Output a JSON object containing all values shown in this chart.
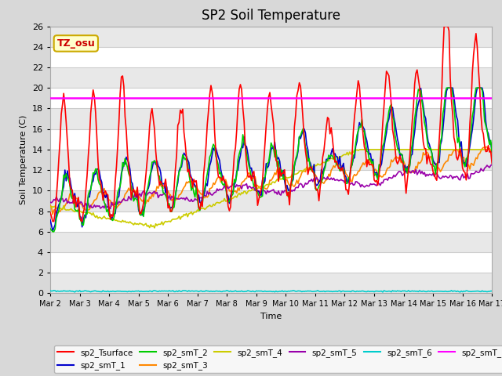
{
  "title": "SP2 Soil Temperature",
  "xlabel": "Time",
  "ylabel": "Soil Temperature (C)",
  "ylim": [
    0,
    26
  ],
  "yticks": [
    0,
    2,
    4,
    6,
    8,
    10,
    12,
    14,
    16,
    18,
    20,
    22,
    24,
    26
  ],
  "xtick_labels": [
    "Mar 2",
    "Mar 3",
    "Mar 4",
    "Mar 5",
    "Mar 6",
    "Mar 7",
    "Mar 8",
    "Mar 9",
    "Mar 10",
    "Mar 11",
    "Mar 12",
    "Mar 13",
    "Mar 14",
    "Mar 15",
    "Mar 16",
    "Mar 17"
  ],
  "annotation_text": "TZ_osu",
  "annotation_color": "#cc0000",
  "annotation_bg": "#ffffcc",
  "annotation_border": "#ccaa00",
  "horizontal_line_y": 19.0,
  "horizontal_line_color": "#ff00ff",
  "series_colors": {
    "sp2_Tsurface": "#ff0000",
    "sp2_smT_1": "#0000cc",
    "sp2_smT_2": "#00cc00",
    "sp2_smT_3": "#ff8800",
    "sp2_smT_4": "#cccc00",
    "sp2_smT_5": "#9900aa",
    "sp2_smT_6": "#00cccc",
    "sp2_smT_7": "#ff00ff"
  },
  "bg_color": "#d8d8d8",
  "plot_bg_color": "#ffffff",
  "grid_color": "#cccccc",
  "legend_ncol_row1": 6,
  "legend_ncol_row2": 2,
  "num_points": 361,
  "figsize": [
    6.4,
    4.8
  ],
  "dpi": 100
}
